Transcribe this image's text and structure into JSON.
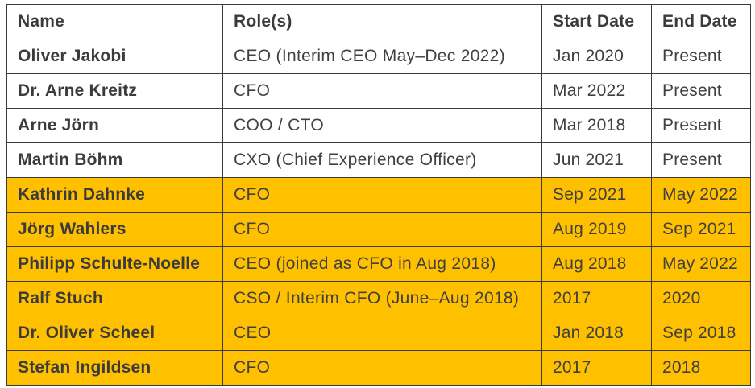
{
  "table": {
    "headers": [
      "Name",
      "Role(s)",
      "Start Date",
      "End Date"
    ],
    "rows": [
      {
        "name": "Oliver Jakobi",
        "role": "CEO (Interim CEO May–Dec 2022)",
        "start": "Jan 2020",
        "end": "Present",
        "highlighted": false
      },
      {
        "name": "Dr. Arne Kreitz",
        "role": "CFO",
        "start": "Mar 2022",
        "end": "Present",
        "highlighted": false
      },
      {
        "name": "Arne Jörn",
        "role": "COO / CTO",
        "start": "Mar 2018",
        "end": "Present",
        "highlighted": false
      },
      {
        "name": "Martin Böhm",
        "role": "CXO (Chief Experience Officer)",
        "start": "Jun 2021",
        "end": "Present",
        "highlighted": false
      },
      {
        "name": "Kathrin Dahnke",
        "role": "CFO",
        "start": "Sep 2021",
        "end": "May 2022",
        "highlighted": true
      },
      {
        "name": "Jörg Wahlers",
        "role": "CFO",
        "start": "Aug 2019",
        "end": "Sep 2021",
        "highlighted": true
      },
      {
        "name": "Philipp Schulte-Noelle",
        "role": "CEO (joined as CFO in Aug 2018)",
        "start": "Aug 2018",
        "end": "May 2022",
        "highlighted": true
      },
      {
        "name": "Ralf Stuch",
        "role": "CSO / Interim CFO (June–Aug 2018)",
        "start": "2017",
        "end": "2020",
        "highlighted": true
      },
      {
        "name": "Dr. Oliver Scheel",
        "role": "CEO",
        "start": "Jan 2018",
        "end": "Sep 2018",
        "highlighted": true
      },
      {
        "name": "Stefan Ingildsen",
        "role": "CFO",
        "start": "2017",
        "end": "2018",
        "highlighted": true
      }
    ]
  },
  "colors": {
    "highlight": "#ffc000",
    "border": "#3a3a3a",
    "text": "#404040"
  }
}
